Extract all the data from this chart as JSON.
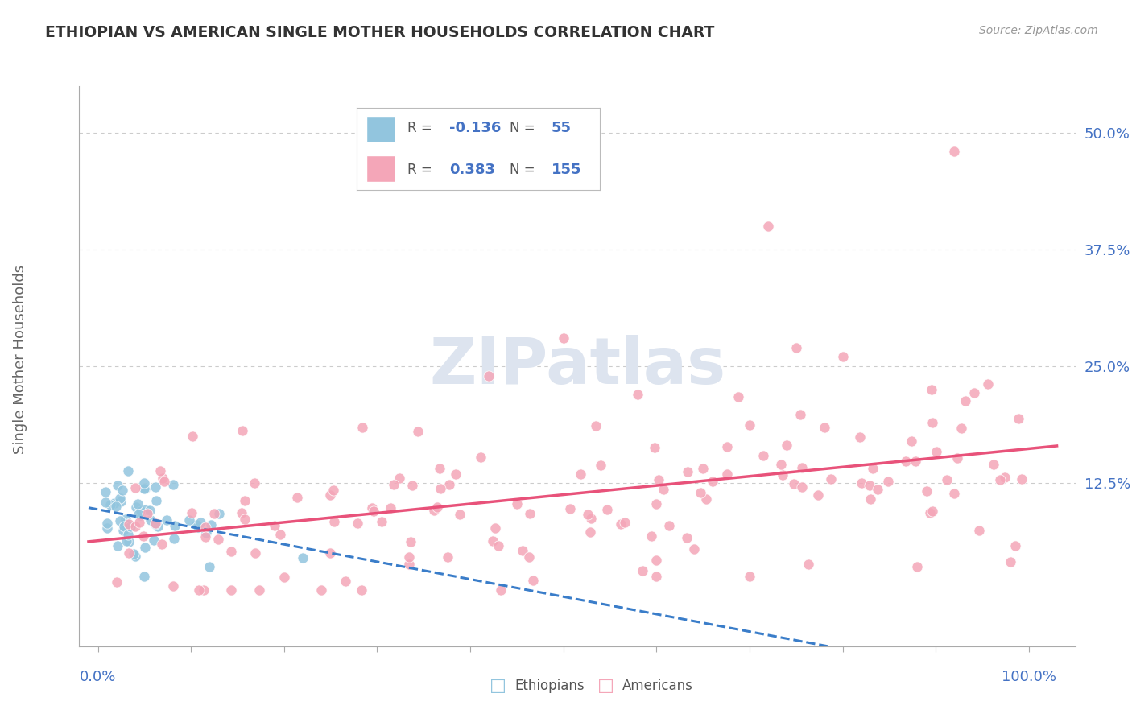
{
  "title": "ETHIOPIAN VS AMERICAN SINGLE MOTHER HOUSEHOLDS CORRELATION CHART",
  "source": "Source: ZipAtlas.com",
  "ylabel": "Single Mother Households",
  "y_ticks": [
    0.125,
    0.25,
    0.375,
    0.5
  ],
  "y_tick_labels": [
    "12.5%",
    "25.0%",
    "37.5%",
    "50.0%"
  ],
  "xlim": [
    -0.02,
    1.05
  ],
  "ylim": [
    -0.05,
    0.55
  ],
  "blue_color": "#92c5de",
  "pink_color": "#f4a6b8",
  "blue_line_color": "#3a7dc9",
  "pink_line_color": "#e8527a",
  "background_color": "#ffffff",
  "grid_color": "#cccccc",
  "watermark_color": "#dde4ef",
  "title_color": "#333333",
  "label_color": "#4472c4",
  "ylabel_color": "#666666",
  "source_color": "#999999"
}
